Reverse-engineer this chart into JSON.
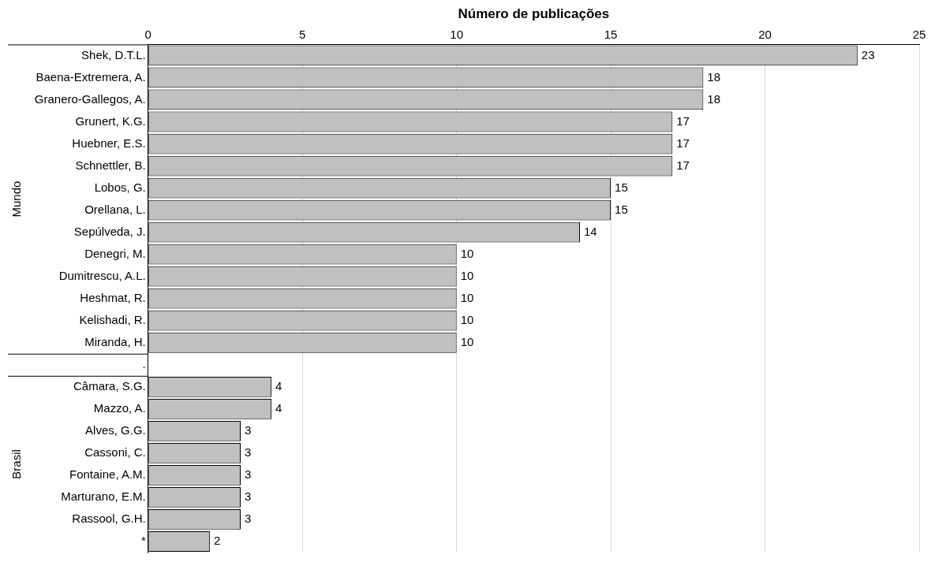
{
  "chart_data": {
    "type": "bar",
    "orientation": "horizontal",
    "xlabel": "Número de publicações",
    "categories": [
      "Shek, D.T.L.",
      "Baena-Extremera, A.",
      "Granero-Gallegos, A.",
      "Grunert, K.G.",
      "Huebner, E.S.",
      "Schnettler, B.",
      "Lobos, G.",
      "Orellana, L.",
      "Sepúlveda, J.",
      "Denegri, M.",
      "Dumitrescu, A.L.",
      "Heshmat, R.",
      "Kelishadi, R.",
      "Miranda, H.",
      ".",
      "Câmara, S.G.",
      "Mazzo, A.",
      "Alves, G.G.",
      "Cassoni, C.",
      "Fontaine, A.M.",
      "Marturano, E.M.",
      "Rassool, G.H.",
      "*"
    ],
    "values": [
      23,
      18,
      18,
      17,
      17,
      17,
      15,
      15,
      14,
      10,
      10,
      10,
      10,
      10,
      null,
      4,
      4,
      3,
      3,
      3,
      3,
      3,
      2
    ],
    "color": "#c0c0c0",
    "xlim": [
      0,
      25
    ],
    "xticks": [
      0,
      5,
      10,
      15,
      20,
      25
    ],
    "grid": "x",
    "data_labels": true,
    "annotations": [
      "Mundo",
      "Brasil"
    ]
  }
}
